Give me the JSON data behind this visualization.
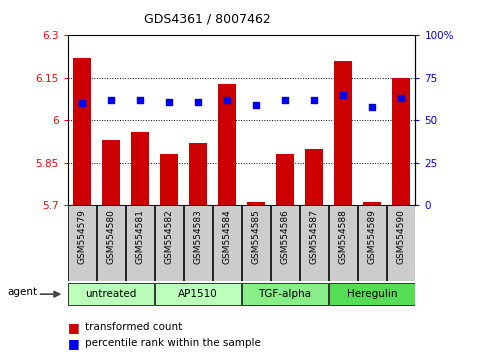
{
  "title": "GDS4361 / 8007462",
  "samples": [
    "GSM554579",
    "GSM554580",
    "GSM554581",
    "GSM554582",
    "GSM554583",
    "GSM554584",
    "GSM554585",
    "GSM554586",
    "GSM554587",
    "GSM554588",
    "GSM554589",
    "GSM554590"
  ],
  "red_values": [
    6.22,
    5.93,
    5.96,
    5.88,
    5.92,
    6.13,
    5.71,
    5.88,
    5.9,
    6.21,
    5.71,
    6.15
  ],
  "blue_values": [
    60,
    62,
    62,
    61,
    61,
    62,
    59,
    62,
    62,
    65,
    58,
    63
  ],
  "ylim_left": [
    5.7,
    6.3
  ],
  "ylim_right": [
    0,
    100
  ],
  "yticks_left": [
    5.7,
    5.85,
    6.0,
    6.15,
    6.3
  ],
  "yticks_right": [
    0,
    25,
    50,
    75,
    100
  ],
  "ytick_labels_left": [
    "5.7",
    "5.85",
    "6",
    "6.15",
    "6.3"
  ],
  "ytick_labels_right": [
    "0",
    "25",
    "50",
    "75",
    "100%"
  ],
  "hlines": [
    5.85,
    6.0,
    6.15
  ],
  "bar_color": "#cc0000",
  "dot_color": "#0000ee",
  "bar_bottom": 5.7,
  "groups": [
    {
      "label": "untreated",
      "start": 0,
      "end": 3,
      "color": "#bbffbb"
    },
    {
      "label": "AP1510",
      "start": 3,
      "end": 6,
      "color": "#bbffbb"
    },
    {
      "label": "TGF-alpha",
      "start": 6,
      "end": 9,
      "color": "#88ee88"
    },
    {
      "label": "Heregulin",
      "start": 9,
      "end": 12,
      "color": "#55dd55"
    }
  ],
  "agent_label": "agent",
  "legend_red": "transformed count",
  "legend_blue": "percentile rank within the sample",
  "bar_width": 0.6,
  "label_fontsize": 6.5,
  "tick_fontsize": 7.5,
  "title_fontsize": 9
}
